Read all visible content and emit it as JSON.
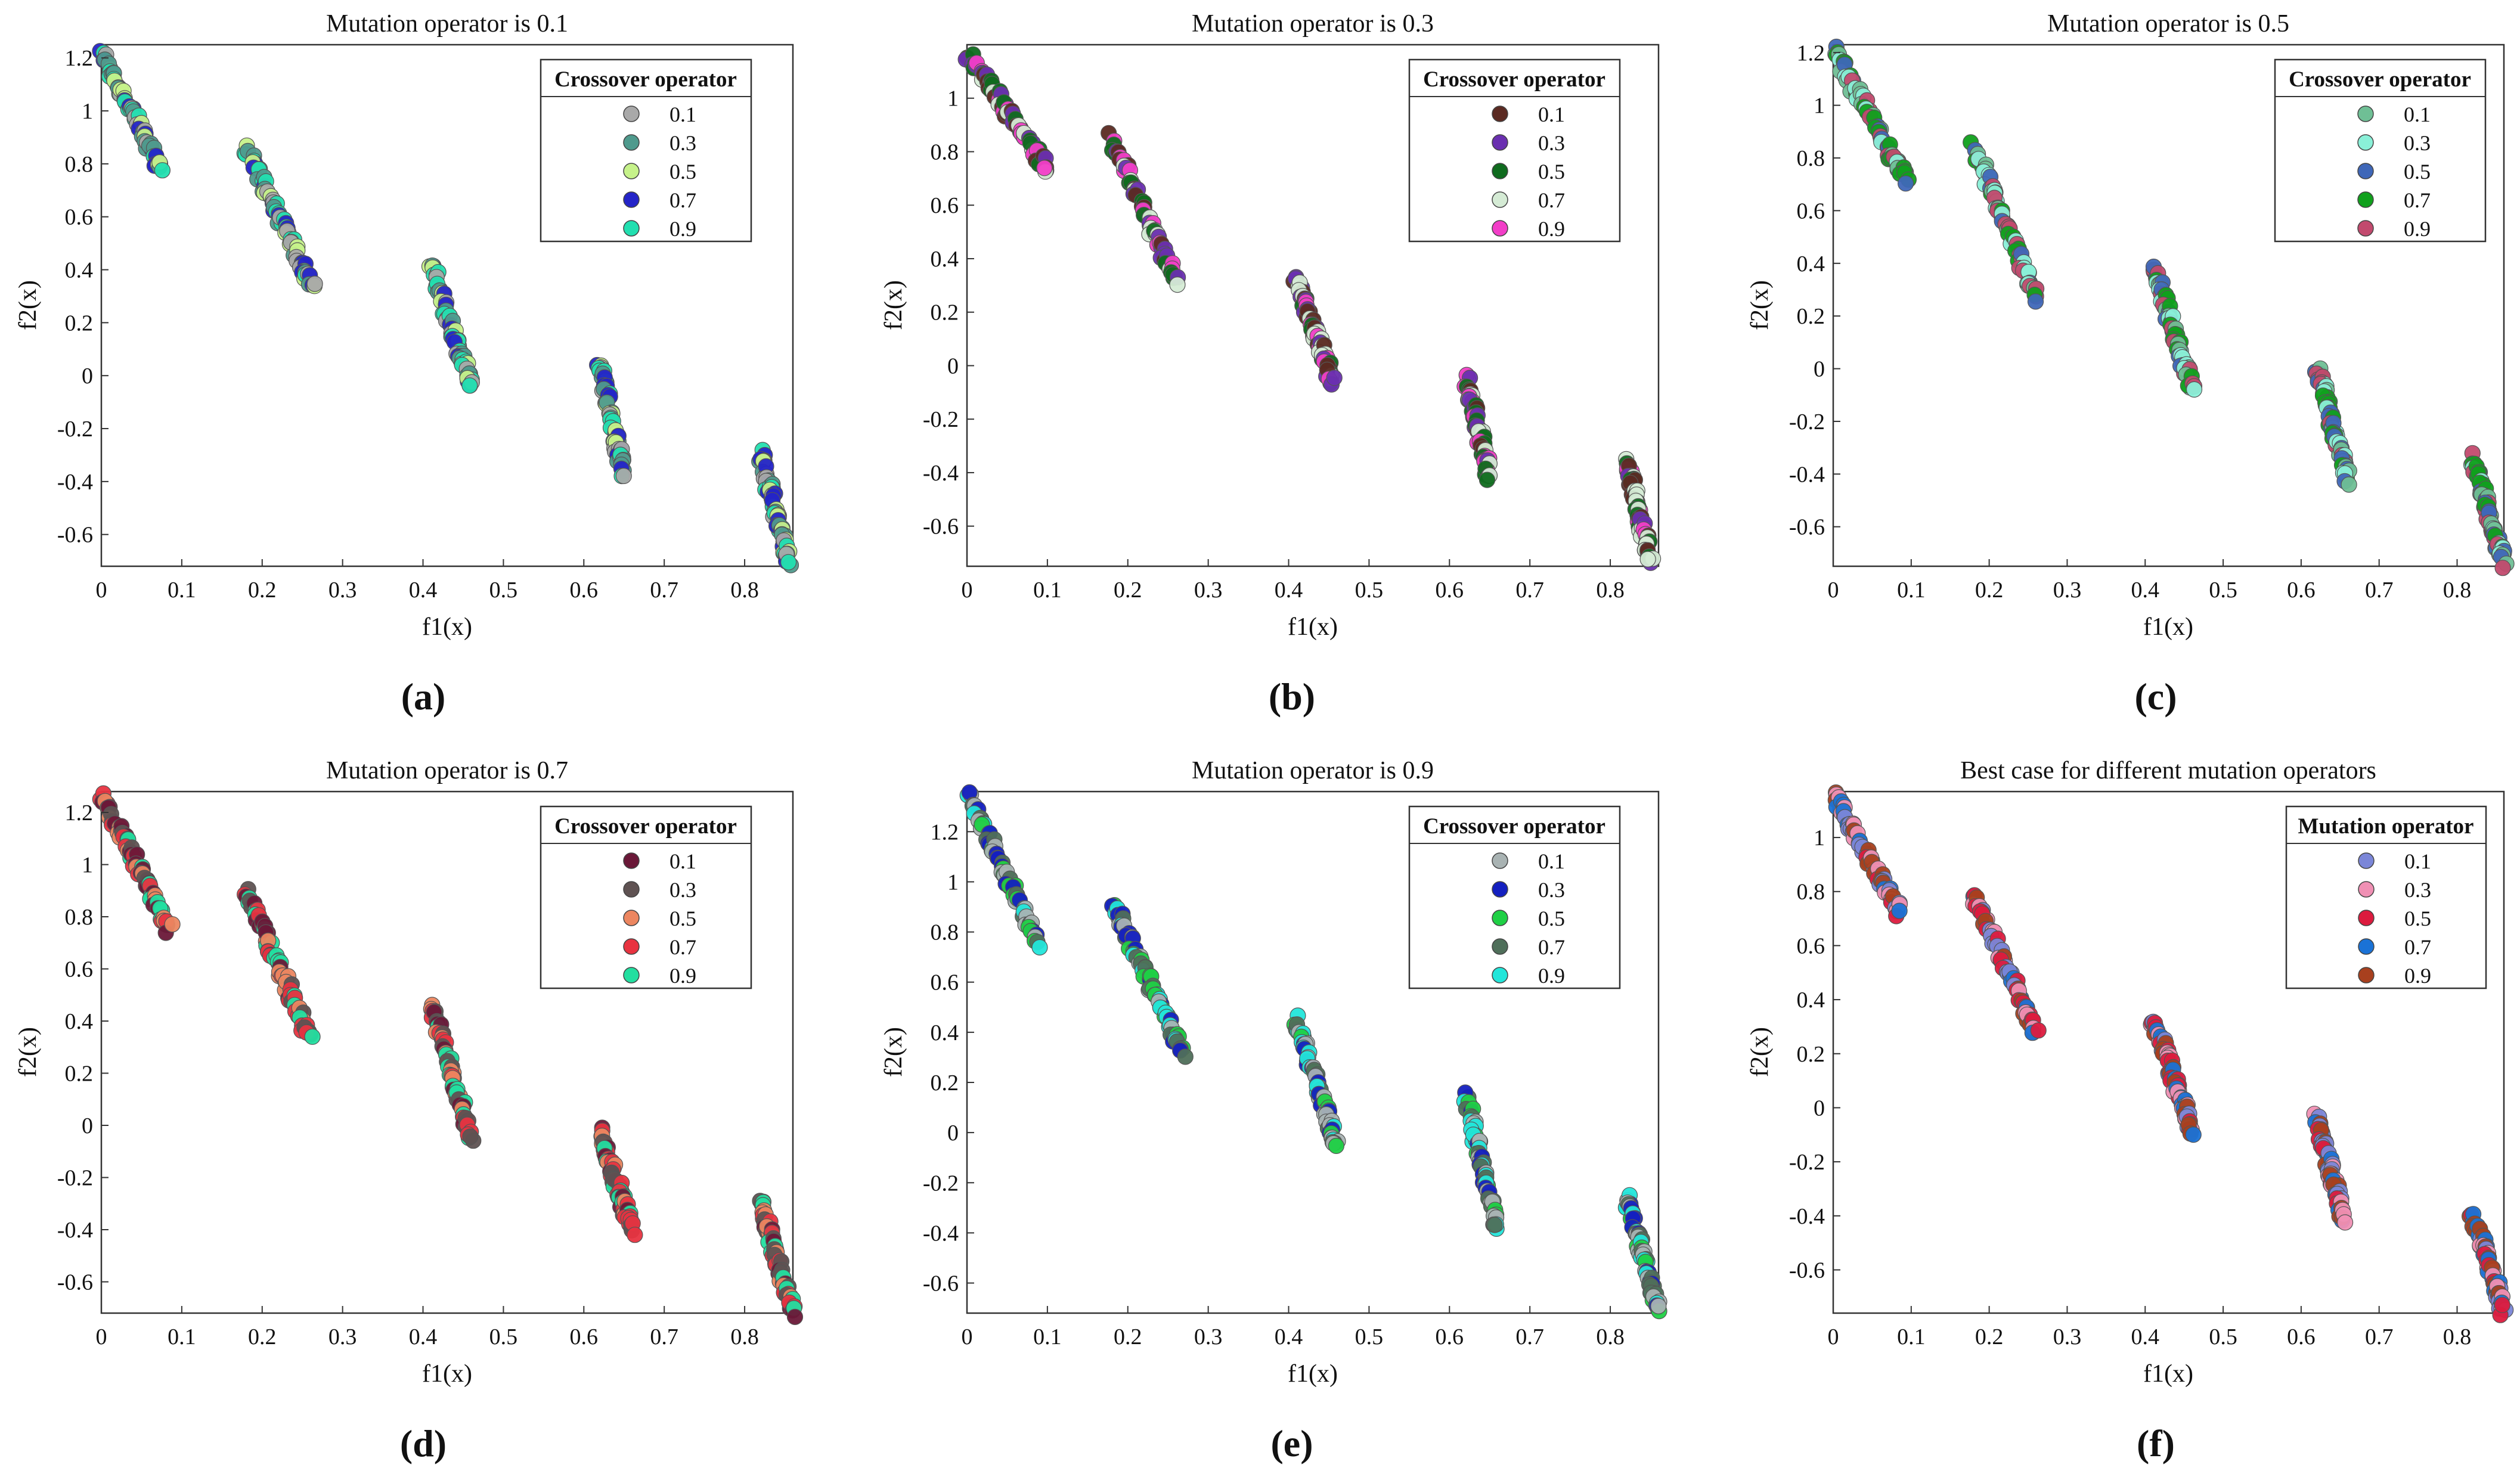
{
  "chart_data": [
    {
      "type": "scatter",
      "caption": "(a)",
      "title": "Mutation operator is 0.1",
      "xlabel": "f1(x)",
      "ylabel": "f2(x)",
      "xlim": [
        0,
        0.86
      ],
      "ylim": [
        -0.72,
        1.25
      ],
      "xticks": [
        0,
        0.1,
        0.2,
        0.3,
        0.4,
        0.5,
        0.6,
        0.7,
        0.8
      ],
      "xtick_labels": [
        "0",
        "0.1",
        "0.2",
        "0.3",
        "0.4",
        "0.5",
        "0.6",
        "0.7",
        "0.8"
      ],
      "yticks": [
        -0.6,
        -0.4,
        -0.2,
        0,
        0.2,
        0.4,
        0.6,
        0.8,
        1,
        1.2
      ],
      "ytick_labels": [
        "-0.6",
        "-0.4",
        "-0.2",
        "0",
        "0.2",
        "0.4",
        "0.6",
        "0.8",
        "1",
        "1.2"
      ],
      "legend_title": "Crossover operator",
      "legend_position": "top-right",
      "series": [
        {
          "name": "0.1",
          "color": "#a9a9a9"
        },
        {
          "name": "0.3",
          "color": "#4f9a8d"
        },
        {
          "name": "0.5",
          "color": "#c6f28a"
        },
        {
          "name": "0.7",
          "color": "#2424c8"
        },
        {
          "name": "0.9",
          "color": "#22dfb0"
        }
      ],
      "fronts": [
        {
          "x": [
            0.0,
            0.075
          ],
          "y": [
            1.22,
            0.78
          ]
        },
        {
          "x": [
            0.18,
            0.265
          ],
          "y": [
            0.86,
            0.33
          ]
        },
        {
          "x": [
            0.41,
            0.46
          ],
          "y": [
            0.42,
            -0.05
          ]
        },
        {
          "x": [
            0.62,
            0.65
          ],
          "y": [
            0.05,
            -0.37
          ]
        },
        {
          "x": [
            0.82,
            0.855
          ],
          "y": [
            -0.3,
            -0.7
          ]
        }
      ]
    },
    {
      "type": "scatter",
      "caption": "(b)",
      "title": "Mutation operator is 0.3",
      "xlabel": "f1(x)",
      "ylabel": "f2(x)",
      "xlim": [
        0,
        0.86
      ],
      "ylim": [
        -0.75,
        1.2
      ],
      "xticks": [
        0,
        0.1,
        0.2,
        0.3,
        0.4,
        0.5,
        0.6,
        0.7,
        0.8
      ],
      "xtick_labels": [
        "0",
        "0.1",
        "0.2",
        "0.3",
        "0.4",
        "0.5",
        "0.6",
        "0.7",
        "0.8"
      ],
      "yticks": [
        -0.6,
        -0.4,
        -0.2,
        0,
        0.2,
        0.4,
        0.6,
        0.8,
        1
      ],
      "ytick_labels": [
        "-0.6",
        "-0.4",
        "-0.2",
        "0",
        "0.2",
        "0.4",
        "0.6",
        "0.8",
        "1"
      ],
      "legend_title": "Crossover operator",
      "legend_position": "top-right",
      "series": [
        {
          "name": "0.1",
          "color": "#5b2a22"
        },
        {
          "name": "0.3",
          "color": "#6a2fb0"
        },
        {
          "name": "0.5",
          "color": "#0f6b1e"
        },
        {
          "name": "0.7",
          "color": "#d5ebd5"
        },
        {
          "name": "0.9",
          "color": "#f23ec8"
        }
      ],
      "fronts": [
        {
          "x": [
            0.0,
            0.1
          ],
          "y": [
            1.17,
            0.74
          ]
        },
        {
          "x": [
            0.18,
            0.26
          ],
          "y": [
            0.85,
            0.31
          ]
        },
        {
          "x": [
            0.41,
            0.455
          ],
          "y": [
            0.33,
            -0.06
          ]
        },
        {
          "x": [
            0.62,
            0.65
          ],
          "y": [
            -0.04,
            -0.41
          ]
        },
        {
          "x": [
            0.82,
            0.85
          ],
          "y": [
            -0.35,
            -0.73
          ]
        }
      ]
    },
    {
      "type": "scatter",
      "caption": "(c)",
      "title": "Mutation operator is 0.5",
      "xlabel": "f1(x)",
      "ylabel": "f2(x)",
      "xlim": [
        0,
        0.86
      ],
      "ylim": [
        -0.75,
        1.23
      ],
      "xticks": [
        0,
        0.1,
        0.2,
        0.3,
        0.4,
        0.5,
        0.6,
        0.7,
        0.8
      ],
      "xtick_labels": [
        "0",
        "0.1",
        "0.2",
        "0.3",
        "0.4",
        "0.5",
        "0.6",
        "0.7",
        "0.8"
      ],
      "yticks": [
        -0.6,
        -0.4,
        -0.2,
        0,
        0.2,
        0.4,
        0.6,
        0.8,
        1,
        1.2
      ],
      "ytick_labels": [
        "-0.6",
        "-0.4",
        "-0.2",
        "0",
        "0.2",
        "0.4",
        "0.6",
        "0.8",
        "1",
        "1.2"
      ],
      "legend_title": "Crossover operator",
      "legend_position": "top-right",
      "series": [
        {
          "name": "0.1",
          "color": "#6fbf95"
        },
        {
          "name": "0.3",
          "color": "#8af0d8"
        },
        {
          "name": "0.5",
          "color": "#3f67b8"
        },
        {
          "name": "0.7",
          "color": "#10a01c"
        },
        {
          "name": "0.9",
          "color": "#c24a6e"
        }
      ],
      "fronts": [
        {
          "x": [
            0.0,
            0.095
          ],
          "y": [
            1.21,
            0.71
          ]
        },
        {
          "x": [
            0.18,
            0.26
          ],
          "y": [
            0.84,
            0.27
          ]
        },
        {
          "x": [
            0.41,
            0.46
          ],
          "y": [
            0.39,
            -0.08
          ]
        },
        {
          "x": [
            0.62,
            0.66
          ],
          "y": [
            0.01,
            -0.42
          ]
        },
        {
          "x": [
            0.82,
            0.86
          ],
          "y": [
            -0.34,
            -0.74
          ]
        }
      ]
    },
    {
      "type": "scatter",
      "caption": "(d)",
      "title": "Mutation operator is 0.7",
      "xlabel": "f1(x)",
      "ylabel": "f2(x)",
      "xlim": [
        0,
        0.86
      ],
      "ylim": [
        -0.72,
        1.28
      ],
      "xticks": [
        0,
        0.1,
        0.2,
        0.3,
        0.4,
        0.5,
        0.6,
        0.7,
        0.8
      ],
      "xtick_labels": [
        "0",
        "0.1",
        "0.2",
        "0.3",
        "0.4",
        "0.5",
        "0.6",
        "0.7",
        "0.8"
      ],
      "yticks": [
        -0.6,
        -0.4,
        -0.2,
        0,
        0.2,
        0.4,
        0.6,
        0.8,
        1,
        1.2
      ],
      "ytick_labels": [
        "-0.6",
        "-0.4",
        "-0.2",
        "0",
        "0.2",
        "0.4",
        "0.6",
        "0.8",
        "1",
        "1.2"
      ],
      "legend_title": "Crossover operator",
      "legend_position": "top-right",
      "series": [
        {
          "name": "0.1",
          "color": "#6a1838"
        },
        {
          "name": "0.3",
          "color": "#5f5252"
        },
        {
          "name": "0.5",
          "color": "#ec8660"
        },
        {
          "name": "0.7",
          "color": "#e83340"
        },
        {
          "name": "0.9",
          "color": "#22dfa0"
        }
      ],
      "fronts": [
        {
          "x": [
            0.0,
            0.085
          ],
          "y": [
            1.27,
            0.75
          ]
        },
        {
          "x": [
            0.18,
            0.26
          ],
          "y": [
            0.9,
            0.33
          ]
        },
        {
          "x": [
            0.41,
            0.46
          ],
          "y": [
            0.47,
            -0.05
          ]
        },
        {
          "x": [
            0.62,
            0.66
          ],
          "y": [
            -0.02,
            -0.4
          ]
        },
        {
          "x": [
            0.82,
            0.86
          ],
          "y": [
            -0.29,
            -0.72
          ]
        }
      ]
    },
    {
      "type": "scatter",
      "caption": "(e)",
      "title": "Mutation operator is 0.9",
      "xlabel": "f1(x)",
      "ylabel": "f2(x)",
      "xlim": [
        0,
        0.86
      ],
      "ylim": [
        -0.72,
        1.36
      ],
      "xticks": [
        0,
        0.1,
        0.2,
        0.3,
        0.4,
        0.5,
        0.6,
        0.7,
        0.8
      ],
      "xtick_labels": [
        "0",
        "0.1",
        "0.2",
        "0.3",
        "0.4",
        "0.5",
        "0.6",
        "0.7",
        "0.8"
      ],
      "yticks": [
        -0.6,
        -0.4,
        -0.2,
        0,
        0.2,
        0.4,
        0.6,
        0.8,
        1,
        1.2
      ],
      "ytick_labels": [
        "-0.6",
        "-0.4",
        "-0.2",
        "0",
        "0.2",
        "0.4",
        "0.6",
        "0.8",
        "1",
        "1.2"
      ],
      "legend_title": "Crossover operator",
      "legend_position": "top-right",
      "series": [
        {
          "name": "0.1",
          "color": "#a9b3b3"
        },
        {
          "name": "0.3",
          "color": "#1420c0"
        },
        {
          "name": "0.5",
          "color": "#1fd045"
        },
        {
          "name": "0.7",
          "color": "#4f6f5a"
        },
        {
          "name": "0.9",
          "color": "#22e6da"
        }
      ],
      "fronts": [
        {
          "x": [
            0.0,
            0.09
          ],
          "y": [
            1.36,
            0.75
          ]
        },
        {
          "x": [
            0.18,
            0.27
          ],
          "y": [
            0.92,
            0.31
          ]
        },
        {
          "x": [
            0.41,
            0.46
          ],
          "y": [
            0.45,
            -0.06
          ]
        },
        {
          "x": [
            0.62,
            0.66
          ],
          "y": [
            0.15,
            -0.39
          ]
        },
        {
          "x": [
            0.82,
            0.86
          ],
          "y": [
            -0.25,
            -0.71
          ]
        }
      ]
    },
    {
      "type": "scatter",
      "caption": "(f)",
      "title": "Best case for different mutation operators",
      "xlabel": "f1(x)",
      "ylabel": "f2(x)",
      "xlim": [
        0,
        0.86
      ],
      "ylim": [
        -0.76,
        1.17
      ],
      "xticks": [
        0,
        0.1,
        0.2,
        0.3,
        0.4,
        0.5,
        0.6,
        0.7,
        0.8
      ],
      "xtick_labels": [
        "0",
        "0.1",
        "0.2",
        "0.3",
        "0.4",
        "0.5",
        "0.6",
        "0.7",
        "0.8"
      ],
      "yticks": [
        -0.6,
        -0.4,
        -0.2,
        0,
        0.2,
        0.4,
        0.6,
        0.8,
        1
      ],
      "ytick_labels": [
        "-0.6",
        "-0.4",
        "-0.2",
        "0",
        "0.2",
        "0.4",
        "0.6",
        "0.8",
        "1"
      ],
      "legend_title": "Mutation operator",
      "legend_position": "top-right",
      "series": [
        {
          "name": "0.1",
          "color": "#7b86d8"
        },
        {
          "name": "0.3",
          "color": "#f090b4"
        },
        {
          "name": "0.5",
          "color": "#dc1b3e"
        },
        {
          "name": "0.7",
          "color": "#1a72d6"
        },
        {
          "name": "0.9",
          "color": "#a8401e"
        }
      ],
      "fronts": [
        {
          "x": [
            0.0,
            0.085
          ],
          "y": [
            1.16,
            0.72
          ]
        },
        {
          "x": [
            0.18,
            0.26
          ],
          "y": [
            0.79,
            0.28
          ]
        },
        {
          "x": [
            0.41,
            0.46
          ],
          "y": [
            0.33,
            -0.09
          ]
        },
        {
          "x": [
            0.62,
            0.655
          ],
          "y": [
            -0.04,
            -0.41
          ]
        },
        {
          "x": [
            0.82,
            0.86
          ],
          "y": [
            -0.39,
            -0.75
          ]
        }
      ]
    }
  ]
}
